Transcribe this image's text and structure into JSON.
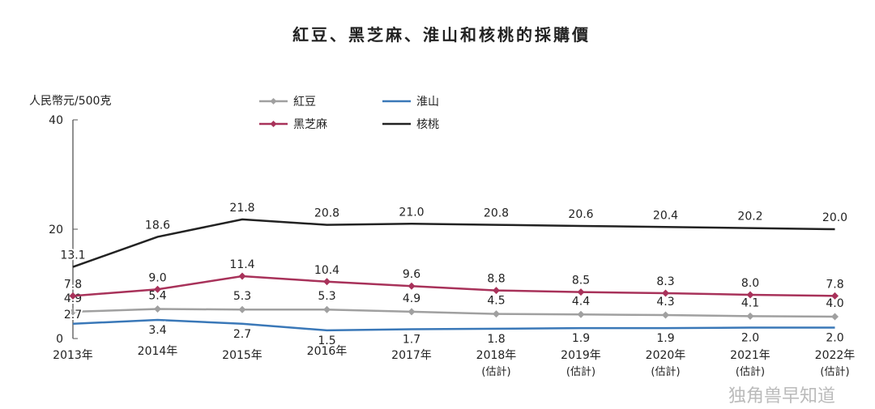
{
  "chart_data": {
    "type": "line",
    "title": "紅豆、黑芝麻、淮山和核桃的採購價",
    "ylabel": "人民幣元/500克",
    "xlabel": "",
    "ylim": [
      0,
      40
    ],
    "yticks": [
      "0",
      "20",
      "40"
    ],
    "categories": [
      "2013年",
      "2014年",
      "2015年",
      "2016年",
      "2017年",
      "2018年",
      "2019年",
      "2020年",
      "2021年",
      "2022年"
    ],
    "category_notes": [
      "",
      "",
      "",
      "",
      "",
      "(估計)",
      "(估計)",
      "(估計)",
      "(估計)",
      "(估計)"
    ],
    "legend_position": "top-center",
    "grid": false,
    "series": [
      {
        "name": "紅豆",
        "color": "#a0a0a0",
        "marker": "diamond",
        "values": [
          4.9,
          5.4,
          5.3,
          5.3,
          4.9,
          4.5,
          4.4,
          4.3,
          4.1,
          4.0
        ]
      },
      {
        "name": "黑芝麻",
        "color": "#a8325a",
        "marker": "diamond",
        "values": [
          7.8,
          9.0,
          11.4,
          10.4,
          9.6,
          8.8,
          8.5,
          8.3,
          8.0,
          7.8
        ]
      },
      {
        "name": "淮山",
        "color": "#3a78b8",
        "marker": "none",
        "values": [
          2.7,
          3.4,
          2.7,
          1.5,
          1.7,
          1.8,
          1.9,
          1.9,
          2.0,
          2.0
        ]
      },
      {
        "name": "核桃",
        "color": "#222222",
        "marker": "none",
        "values": [
          13.1,
          18.6,
          21.8,
          20.8,
          21.0,
          20.8,
          20.6,
          20.4,
          20.2,
          20.0
        ]
      }
    ]
  },
  "watermark": "独角兽早知道"
}
